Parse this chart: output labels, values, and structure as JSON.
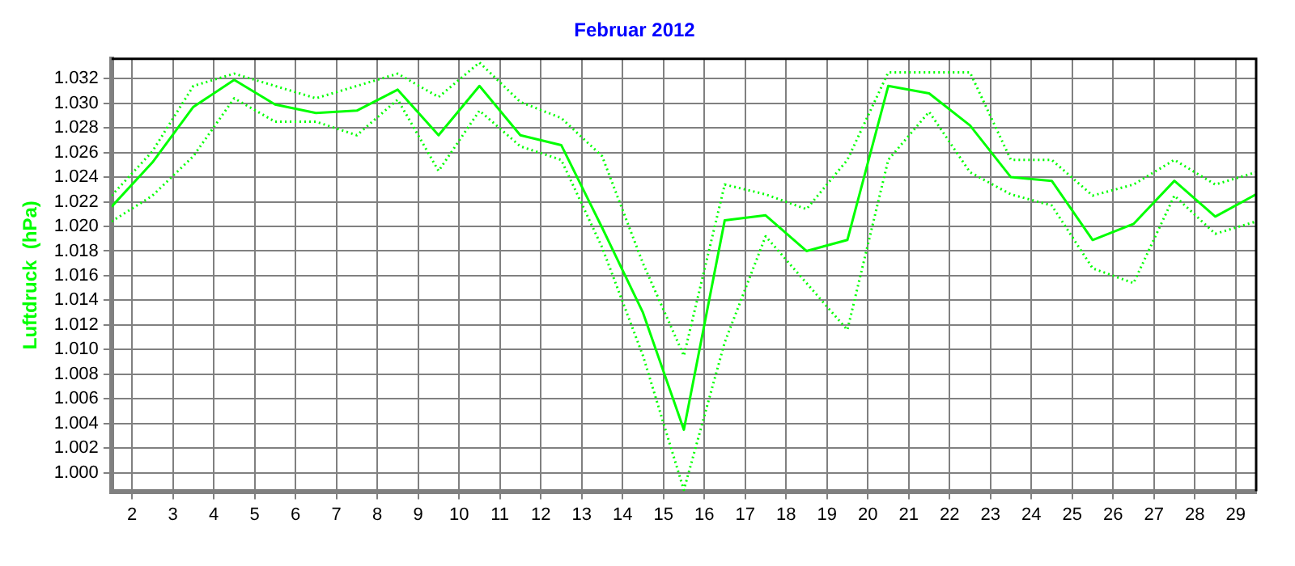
{
  "chart_data": {
    "type": "line",
    "title": "Februar 2012",
    "ylabel": "Luftdruck  (hPa)",
    "x": [
      1.5,
      2.5,
      3.5,
      4.5,
      5.5,
      6.5,
      7.5,
      8.5,
      9.5,
      10.5,
      11.5,
      12.5,
      13.5,
      14.5,
      15.5,
      16.5,
      17.5,
      18.5,
      19.5,
      20.5,
      21.5,
      22.5,
      23.5,
      24.5,
      25.5,
      26.5,
      27.5,
      28.5,
      29.5
    ],
    "series": [
      {
        "color": "#00ff00",
        "line_style": "solid",
        "values": [
          1.0216,
          1.0252,
          1.0297,
          1.0319,
          1.0299,
          1.0292,
          1.0294,
          1.0311,
          1.0274,
          1.0314,
          1.0274,
          1.0266,
          1.0199,
          1.013,
          1.0035,
          1.0205,
          1.0209,
          1.018,
          1.0189,
          1.0314,
          1.0308,
          1.0282,
          1.024,
          1.0237,
          1.0189,
          1.0202,
          1.0237,
          1.0208,
          1.0226
        ]
      },
      {
        "color": "#00ff00",
        "line_style": "dotted",
        "values": [
          1.0225,
          1.0261,
          1.0314,
          1.0324,
          1.0314,
          1.0304,
          1.0314,
          1.0324,
          1.0305,
          1.0333,
          1.0301,
          1.0288,
          1.0257,
          1.017,
          1.0095,
          1.0234,
          1.0226,
          1.0214,
          1.0254,
          1.0325,
          1.0325,
          1.0325,
          1.0254,
          1.0254,
          1.0225,
          1.0234,
          1.0254,
          1.0234,
          1.0244
        ]
      },
      {
        "color": "#00ff00",
        "line_style": "dotted",
        "values": [
          1.0204,
          1.0225,
          1.0257,
          1.0304,
          1.0285,
          1.0285,
          1.0274,
          1.0303,
          1.0245,
          1.0294,
          1.0265,
          1.0254,
          1.0183,
          1.0095,
          0.9986,
          1.0106,
          1.0192,
          1.0154,
          1.0116,
          1.0254,
          1.0293,
          1.0244,
          1.0226,
          1.0217,
          1.0166,
          1.0154,
          1.0225,
          1.0194,
          1.0204
        ]
      }
    ],
    "xlim": [
      1.5,
      29.5
    ],
    "xticks": [
      2,
      3,
      4,
      5,
      6,
      7,
      8,
      9,
      10,
      11,
      12,
      13,
      14,
      15,
      16,
      17,
      18,
      19,
      20,
      21,
      22,
      23,
      24,
      25,
      26,
      27,
      28,
      29
    ],
    "ylim": [
      0.9985,
      1.0336
    ],
    "yticks": [
      {
        "value": 1.0,
        "label": "1.000"
      },
      {
        "value": 1.002,
        "label": "1.002"
      },
      {
        "value": 1.004,
        "label": "1.004"
      },
      {
        "value": 1.006,
        "label": "1.006"
      },
      {
        "value": 1.008,
        "label": "1.008"
      },
      {
        "value": 1.01,
        "label": "1.010"
      },
      {
        "value": 1.012,
        "label": "1.012"
      },
      {
        "value": 1.014,
        "label": "1.014"
      },
      {
        "value": 1.016,
        "label": "1.016"
      },
      {
        "value": 1.018,
        "label": "1.018"
      },
      {
        "value": 1.02,
        "label": "1.020"
      },
      {
        "value": 1.022,
        "label": "1.022"
      },
      {
        "value": 1.024,
        "label": "1.024"
      },
      {
        "value": 1.026,
        "label": "1.026"
      },
      {
        "value": 1.028,
        "label": "1.028"
      },
      {
        "value": 1.03,
        "label": "1.030"
      },
      {
        "value": 1.032,
        "label": "1.032"
      }
    ],
    "grid": true,
    "legend": false,
    "marker": "none"
  }
}
